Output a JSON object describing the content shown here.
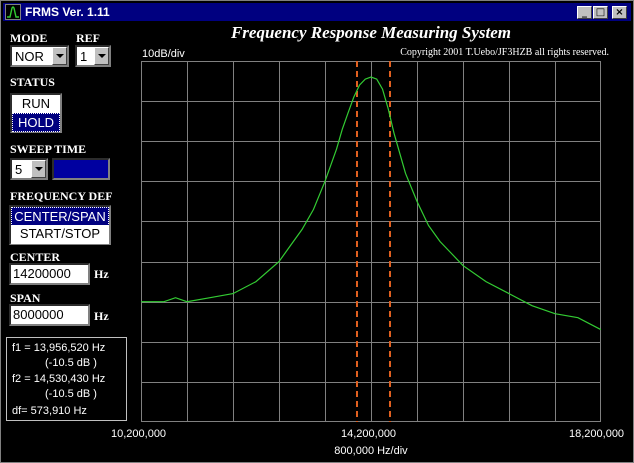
{
  "window": {
    "title": "FRMS Ver. 1.11",
    "buttons": {
      "minimize": "_",
      "maximize": "□",
      "close": "×"
    }
  },
  "header": {
    "title": "Frequency Response Measuring System",
    "copyright": "Copyright 2001 T.Uebo/JF3HZB all rights reserved."
  },
  "controls": {
    "mode": {
      "label": "MODE",
      "value": "NOR"
    },
    "ref": {
      "label": "REF",
      "value": "1"
    },
    "status": {
      "label": "STATUS",
      "options": [
        "RUN",
        "HOLD"
      ],
      "selected": "HOLD"
    },
    "sweep_time": {
      "label": "SWEEP TIME",
      "value": "5"
    },
    "frequency_def": {
      "label": "FREQUENCY DEF",
      "options": [
        "CENTER/SPAN",
        "START/STOP"
      ],
      "selected": "CENTER/SPAN"
    },
    "center": {
      "label": "CENTER",
      "value": "14200000",
      "unit": "Hz"
    },
    "span": {
      "label": "SPAN",
      "value": "8000000",
      "unit": "Hz"
    }
  },
  "readout": {
    "f1": "f1 = 13,956,520 Hz",
    "f1_db": "(-10.5 dB )",
    "f2": "f2 = 14,530,430 Hz",
    "f2_db": "(-10.5 dB )",
    "df": "df= 573,910 Hz"
  },
  "colors": {
    "trace": "#33cc33",
    "marker": "#e06020",
    "grid": "#808080",
    "selection": "#000080",
    "sweep_indicator": "#0000a0"
  },
  "chart_data": {
    "type": "line",
    "ylabel": "10dB/div",
    "xlabel": "800,000 Hz/div",
    "x_ticks": [
      "10,200,000",
      "14,200,000",
      "18,200,000"
    ],
    "xlim": [
      10200000,
      18200000
    ],
    "ylim": [
      -90,
      0
    ],
    "y_div_db": 10,
    "grid": true,
    "markers_hz": [
      13956520,
      14530430
    ],
    "series": [
      {
        "x": [
          10200000,
          10600000,
          10800000,
          11000000,
          11400000,
          11800000,
          12200000,
          12600000,
          12800000,
          13000000,
          13200000,
          13400000,
          13600000,
          13700000,
          13800000,
          13900000,
          14000000,
          14100000,
          14200000,
          14300000,
          14400000,
          14500000,
          14600000,
          14800000,
          15000000,
          15200000,
          15400000,
          15600000,
          15800000,
          16200000,
          16600000,
          17000000,
          17400000,
          17800000,
          18200000
        ],
        "y": [
          -60,
          -60,
          -59,
          -60,
          -59,
          -58,
          -55,
          -50,
          -46,
          -42,
          -37,
          -30,
          -22,
          -17,
          -13,
          -9,
          -6,
          -4.5,
          -4,
          -4.5,
          -7,
          -12,
          -18,
          -28,
          -35,
          -41,
          -45,
          -48,
          -51,
          -55,
          -58,
          -61,
          -63,
          -64,
          -67
        ]
      }
    ]
  }
}
